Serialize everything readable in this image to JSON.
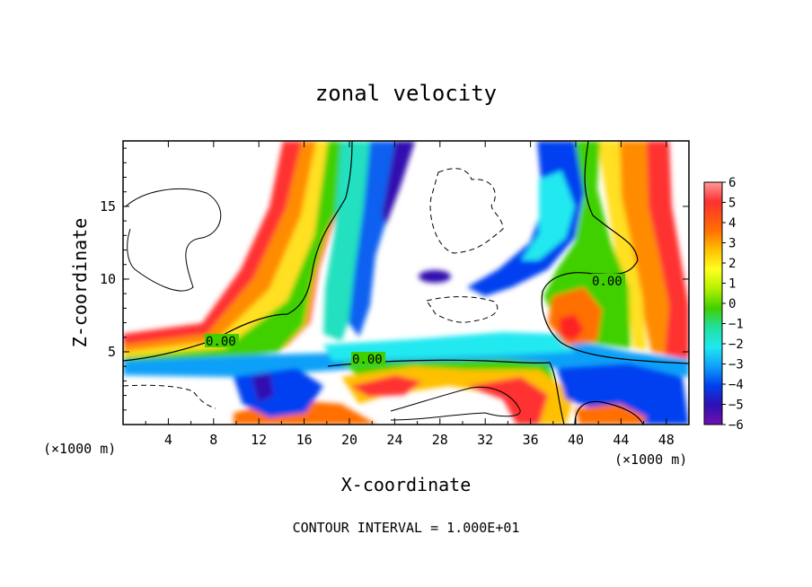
{
  "chart_data": {
    "type": "heatmap",
    "title": "zonal velocity",
    "xlabel": "X-coordinate",
    "ylabel": "Z-coordinate",
    "x_unit_label": "(×1000 m)",
    "xlim": [
      0,
      50
    ],
    "ylim": [
      0,
      19.5
    ],
    "x_ticks": [
      "4",
      "8",
      "12",
      "16",
      "20",
      "24",
      "28",
      "32",
      "36",
      "40",
      "44",
      "48"
    ],
    "y_ticks": [
      "5",
      "10",
      "15"
    ],
    "colorbar": {
      "range": [
        -6,
        6
      ],
      "ticks": [
        "6",
        "5",
        "4",
        "3",
        "2",
        "1",
        "0",
        "−1",
        "−2",
        "−3",
        "−4",
        "−5",
        "−6"
      ]
    },
    "contour_labels": [
      "0.00",
      "0.00",
      "0.00"
    ],
    "footer": "CONTOUR INTERVAL = 1.000E+01",
    "colors": {
      "p6": "#ff9a9a",
      "p5": "#ff3030",
      "p4": "#ff7000",
      "p3": "#ffc000",
      "p2": "#ffff20",
      "p1": "#b4f000",
      "z0": "#40d000",
      "n1": "#20e0a0",
      "n2": "#20e8f0",
      "n3": "#10a0f8",
      "n4": "#0040f0",
      "n5": "#3010b0",
      "n6": "#7010b0",
      "saturated": "#ffffff"
    }
  }
}
